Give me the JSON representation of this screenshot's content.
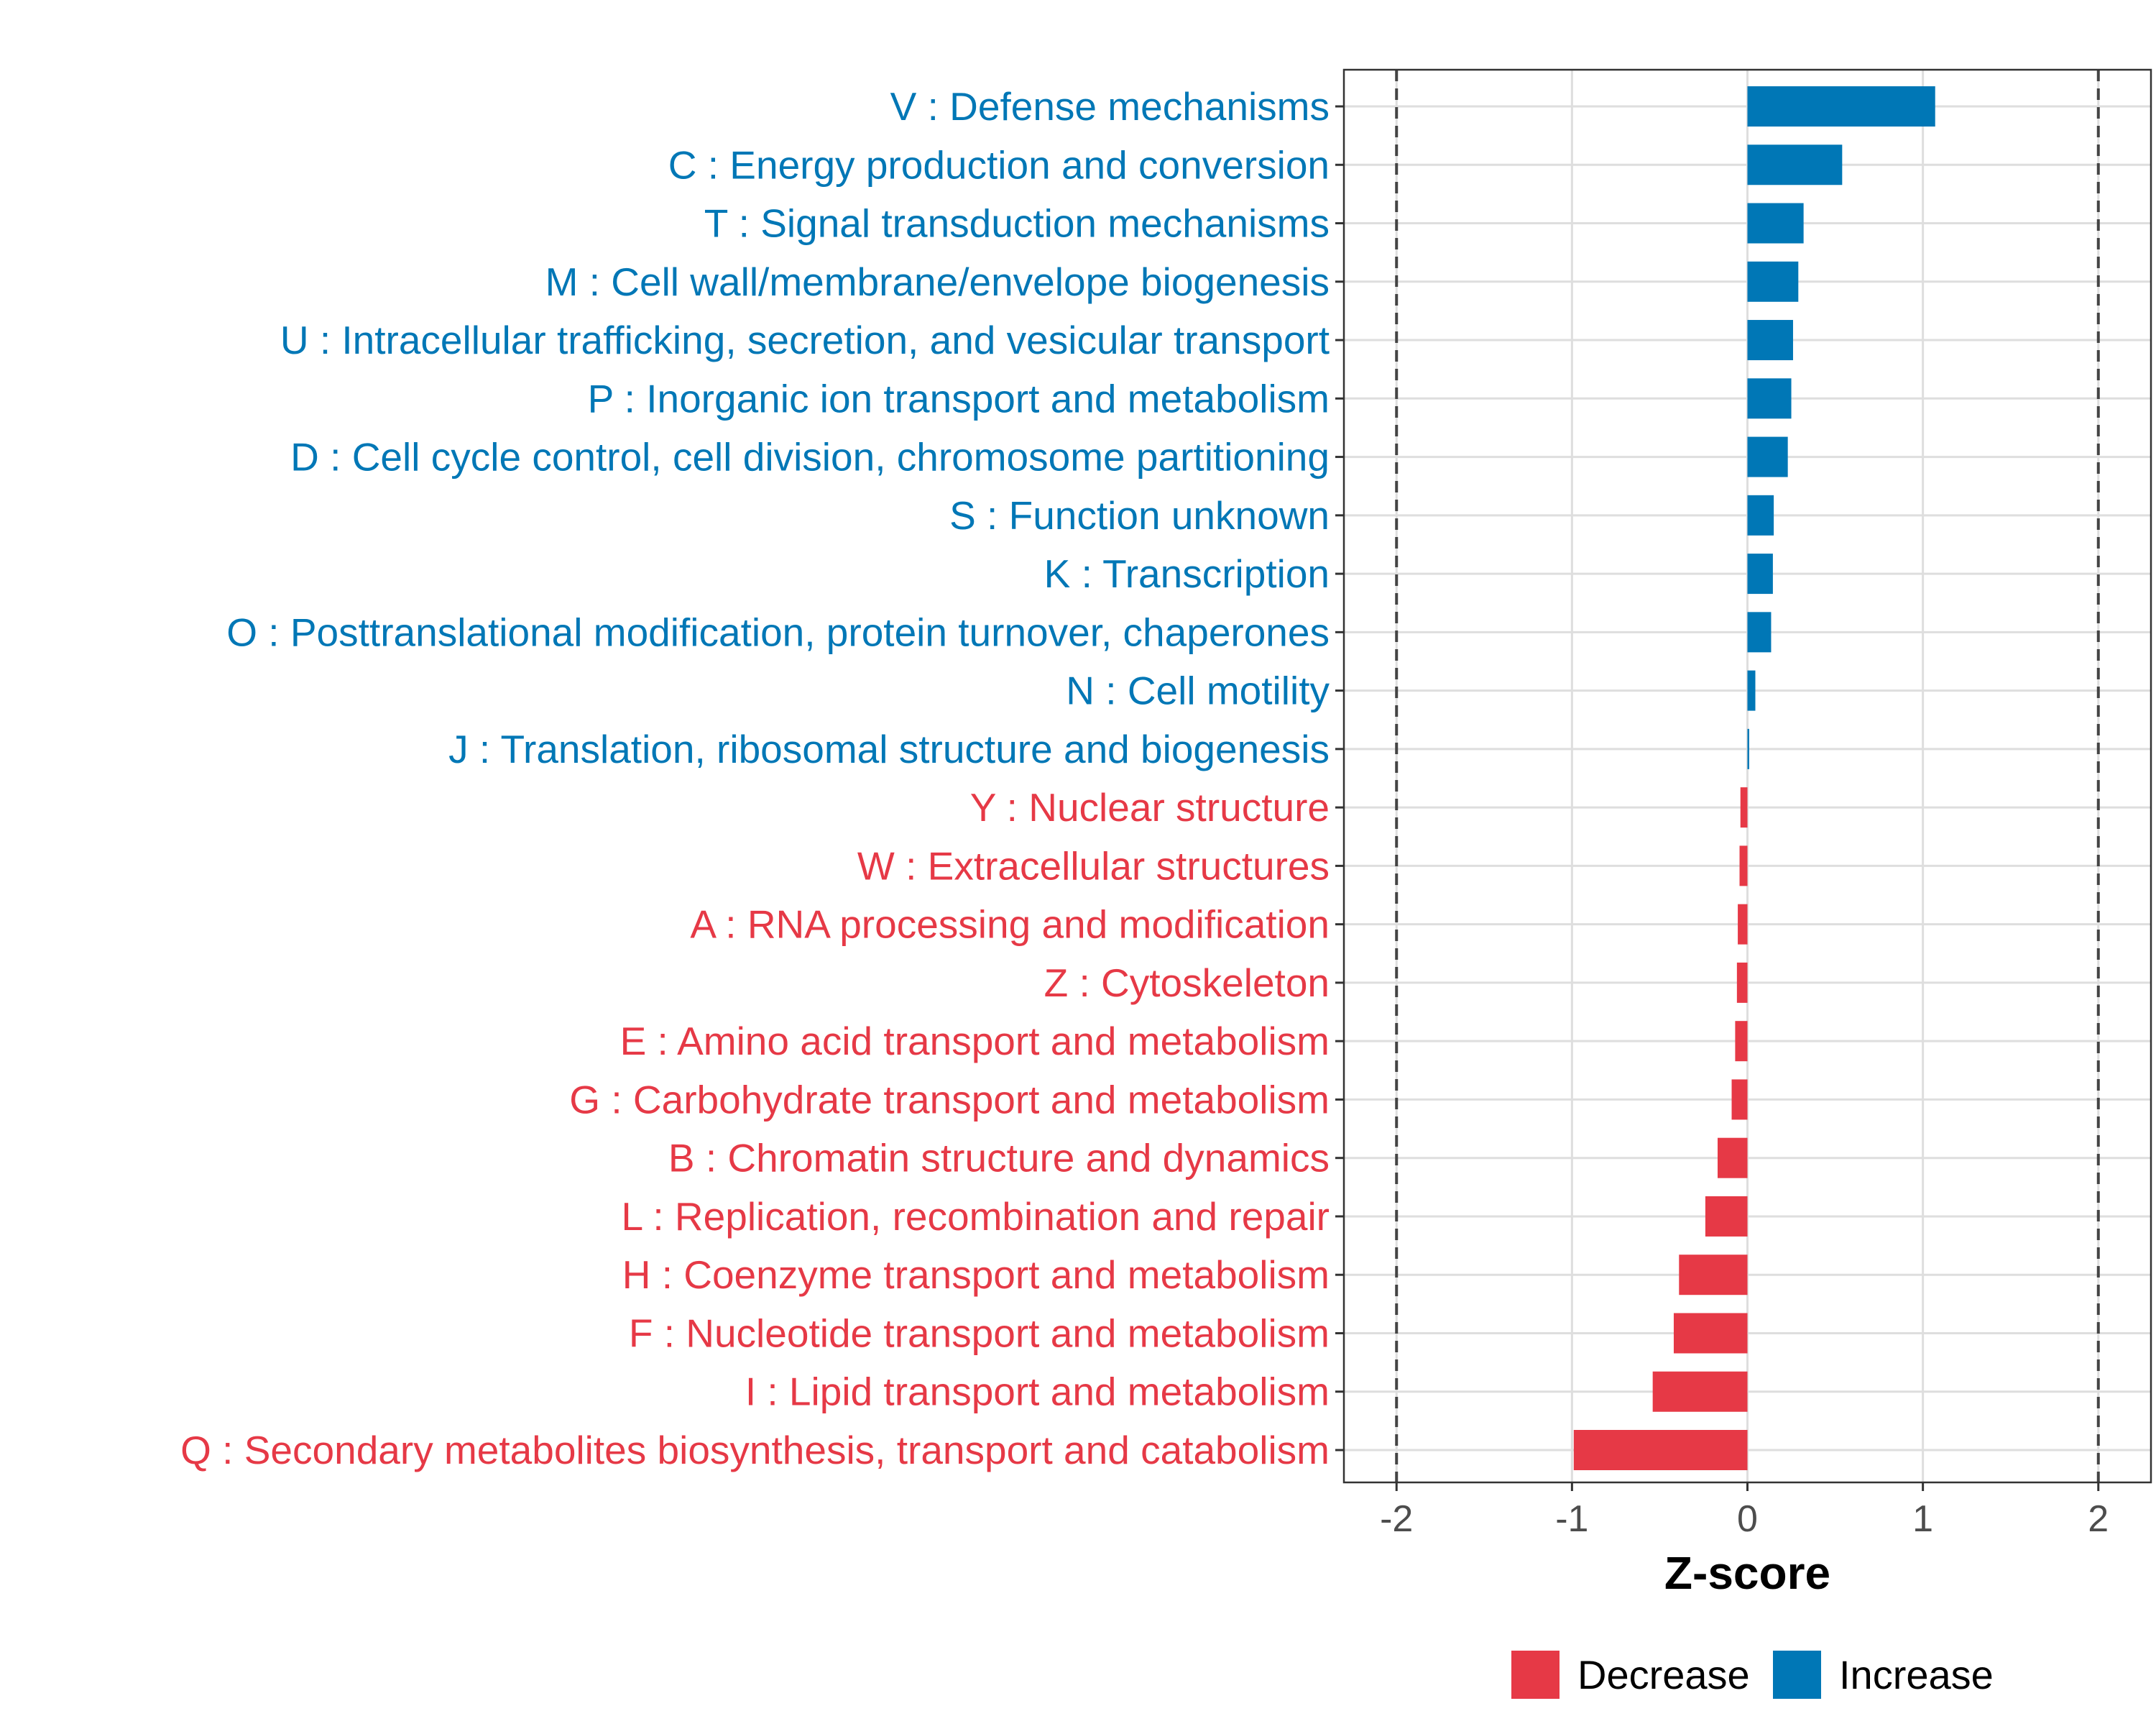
{
  "chart_data": {
    "type": "bar",
    "orientation": "horizontal",
    "xlabel": "Z-score",
    "xlim": [
      -2.3,
      2.3
    ],
    "xticks": [
      -2,
      -1,
      0,
      1,
      2
    ],
    "xtick_labels": [
      "-2",
      "-1",
      "0",
      "1",
      "2"
    ],
    "reference_lines": [
      -2,
      2
    ],
    "grid": true,
    "legend_position": "bottom",
    "legend": [
      {
        "label": "Decrease",
        "color": "#e63946"
      },
      {
        "label": "Increase",
        "color": "#0077b6"
      }
    ],
    "categories": [
      {
        "label": "V : Defense mechanisms",
        "value": 1.07,
        "group": "Increase"
      },
      {
        "label": "C : Energy production and conversion",
        "value": 0.54,
        "group": "Increase"
      },
      {
        "label": "T : Signal transduction mechanisms",
        "value": 0.32,
        "group": "Increase"
      },
      {
        "label": "M : Cell wall/membrane/envelope biogenesis",
        "value": 0.29,
        "group": "Increase"
      },
      {
        "label": "U : Intracellular trafficking, secretion, and vesicular transport",
        "value": 0.26,
        "group": "Increase"
      },
      {
        "label": "P : Inorganic ion transport and metabolism",
        "value": 0.25,
        "group": "Increase"
      },
      {
        "label": "D : Cell cycle control, cell division, chromosome partitioning",
        "value": 0.23,
        "group": "Increase"
      },
      {
        "label": "S : Function unknown",
        "value": 0.15,
        "group": "Increase"
      },
      {
        "label": "K : Transcription",
        "value": 0.145,
        "group": "Increase"
      },
      {
        "label": "O : Posttranslational modification, protein turnover, chaperones",
        "value": 0.135,
        "group": "Increase"
      },
      {
        "label": "N : Cell motility",
        "value": 0.045,
        "group": "Increase"
      },
      {
        "label": "J : Translation, ribosomal structure and biogenesis",
        "value": 0.01,
        "group": "Increase"
      },
      {
        "label": "Y : Nuclear structure",
        "value": -0.04,
        "group": "Decrease"
      },
      {
        "label": "W : Extracellular structures",
        "value": -0.045,
        "group": "Decrease"
      },
      {
        "label": "A : RNA processing and modification",
        "value": -0.055,
        "group": "Decrease"
      },
      {
        "label": "Z : Cytoskeleton",
        "value": -0.06,
        "group": "Decrease"
      },
      {
        "label": "E : Amino acid transport and metabolism",
        "value": -0.07,
        "group": "Decrease"
      },
      {
        "label": "G : Carbohydrate transport and metabolism",
        "value": -0.09,
        "group": "Decrease"
      },
      {
        "label": "B : Chromatin structure and dynamics",
        "value": -0.17,
        "group": "Decrease"
      },
      {
        "label": "L : Replication, recombination and repair",
        "value": -0.24,
        "group": "Decrease"
      },
      {
        "label": "H : Coenzyme transport and metabolism",
        "value": -0.39,
        "group": "Decrease"
      },
      {
        "label": "F : Nucleotide transport and metabolism",
        "value": -0.42,
        "group": "Decrease"
      },
      {
        "label": "I : Lipid transport and metabolism",
        "value": -0.54,
        "group": "Decrease"
      },
      {
        "label": "Q : Secondary metabolites biosynthesis, transport and catabolism",
        "value": -0.99,
        "group": "Decrease"
      }
    ]
  }
}
